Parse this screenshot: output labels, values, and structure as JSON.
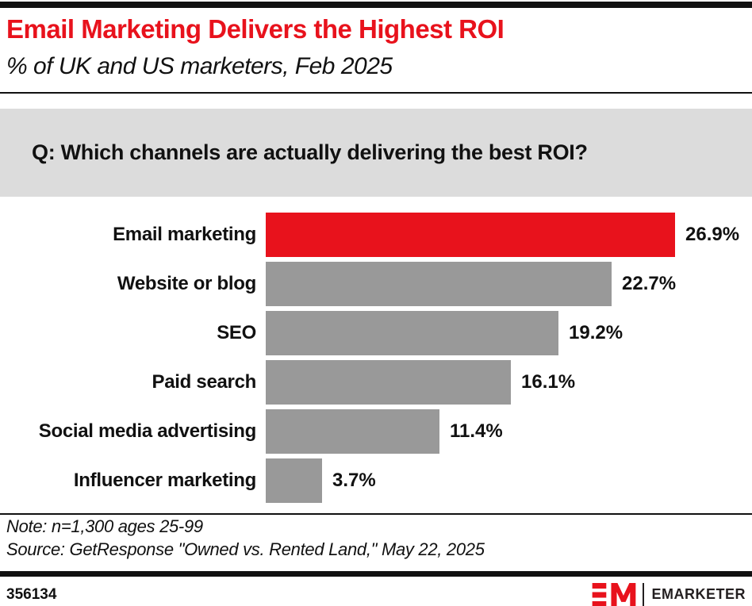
{
  "header": {
    "title": "Email Marketing Delivers the Highest ROI",
    "subtitle": "% of UK and US marketers, Feb 2025"
  },
  "question": "Q: Which channels are actually delivering the best ROI?",
  "chart_data": {
    "type": "bar",
    "orientation": "horizontal",
    "title": "Email Marketing Delivers the Highest ROI",
    "subtitle": "% of UK and US marketers, Feb 2025",
    "categories": [
      "Email marketing",
      "Website or blog",
      "SEO",
      "Paid search",
      "Social media advertising",
      "Influencer marketing"
    ],
    "values": [
      26.9,
      22.7,
      19.2,
      16.1,
      11.4,
      3.7
    ],
    "value_suffix": "%",
    "highlight_index": 0,
    "highlight_color": "#E8121C",
    "bar_color": "#999999",
    "xlim": [
      0,
      28
    ],
    "grid": false,
    "legend": "none",
    "value_labels": "outside-end"
  },
  "footnote": {
    "note": "Note: n=1,300 ages 25-99",
    "source": "Source: GetResponse \"Owned vs. Rented Land,\" May 22, 2025"
  },
  "footer": {
    "chart_id": "356134",
    "brand": "EMARKETER"
  },
  "colors": {
    "accent_red": "#E8121C",
    "bar_gray": "#999999",
    "question_box_bg": "#DCDCDC",
    "rule_black": "#111111"
  },
  "icons": {
    "em_logo_mark": "em-monogram"
  }
}
